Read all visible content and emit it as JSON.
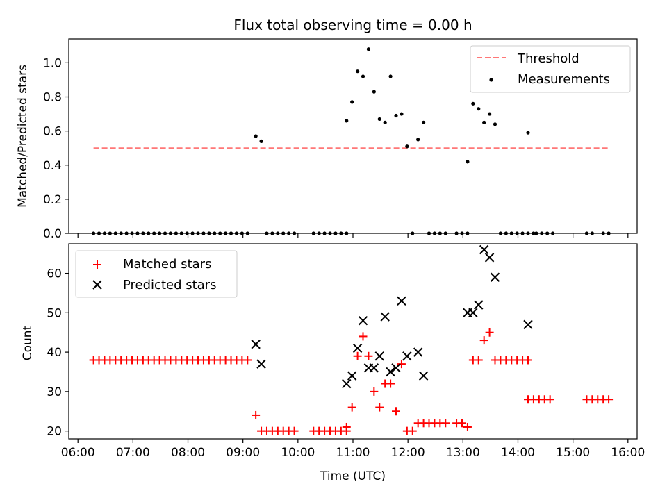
{
  "chart_data": [
    {
      "type": "scatter",
      "title": "Flux total observing time = 0.00 h",
      "xlabel": "",
      "ylabel": "Matched/Predicted stars",
      "xlim": [
        "05:50",
        "16:10"
      ],
      "ylim": [
        0,
        1.14
      ],
      "x_ticks": [
        "06:00",
        "07:00",
        "08:00",
        "09:00",
        "10:00",
        "11:00",
        "12:00",
        "13:00",
        "14:00",
        "15:00",
        "16:00"
      ],
      "y_ticks": [
        "0.0",
        "0.2",
        "0.4",
        "0.6",
        "0.8",
        "1.0"
      ],
      "legend_position": "top-right",
      "threshold": {
        "name": "Threshold",
        "color": "#ff7777",
        "y": 0.5,
        "x_start": "06:17",
        "x_end": "15:40"
      },
      "series": [
        {
          "name": "Measurements",
          "color": "#000000",
          "marker": "dot",
          "points": [
            [
              "06:17",
              0
            ],
            [
              "06:23",
              0
            ],
            [
              "06:29",
              0
            ],
            [
              "06:35",
              0
            ],
            [
              "06:41",
              0
            ],
            [
              "06:47",
              0
            ],
            [
              "06:53",
              0
            ],
            [
              "06:59",
              0
            ],
            [
              "07:05",
              0
            ],
            [
              "07:11",
              0
            ],
            [
              "07:17",
              0
            ],
            [
              "07:23",
              0
            ],
            [
              "07:29",
              0
            ],
            [
              "07:35",
              0
            ],
            [
              "07:41",
              0
            ],
            [
              "07:47",
              0
            ],
            [
              "07:53",
              0
            ],
            [
              "07:59",
              0
            ],
            [
              "08:05",
              0
            ],
            [
              "08:11",
              0
            ],
            [
              "08:17",
              0
            ],
            [
              "08:23",
              0
            ],
            [
              "08:29",
              0
            ],
            [
              "08:35",
              0
            ],
            [
              "08:41",
              0
            ],
            [
              "08:47",
              0
            ],
            [
              "08:53",
              0
            ],
            [
              "08:59",
              0
            ],
            [
              "09:05",
              0
            ],
            [
              "09:14",
              0.57
            ],
            [
              "09:20",
              0.54
            ],
            [
              "09:26",
              0
            ],
            [
              "09:32",
              0
            ],
            [
              "09:38",
              0
            ],
            [
              "09:44",
              0
            ],
            [
              "09:50",
              0
            ],
            [
              "09:56",
              0
            ],
            [
              "10:17",
              0
            ],
            [
              "10:23",
              0
            ],
            [
              "10:29",
              0
            ],
            [
              "10:35",
              0
            ],
            [
              "10:41",
              0
            ],
            [
              "10:47",
              0
            ],
            [
              "10:53",
              0
            ],
            [
              "10:53",
              0.66
            ],
            [
              "10:59",
              0.77
            ],
            [
              "11:05",
              0.95
            ],
            [
              "11:11",
              0.92
            ],
            [
              "11:17",
              1.08
            ],
            [
              "11:23",
              0.83
            ],
            [
              "11:29",
              0.67
            ],
            [
              "11:35",
              0.65
            ],
            [
              "11:41",
              0.92
            ],
            [
              "11:47",
              0.69
            ],
            [
              "11:53",
              0.7
            ],
            [
              "11:59",
              0.51
            ],
            [
              "12:05",
              0
            ],
            [
              "12:11",
              0.55
            ],
            [
              "12:17",
              0.65
            ],
            [
              "12:23",
              0
            ],
            [
              "12:29",
              0
            ],
            [
              "12:35",
              0
            ],
            [
              "12:41",
              0
            ],
            [
              "12:53",
              0
            ],
            [
              "12:59",
              0
            ],
            [
              "13:05",
              0
            ],
            [
              "13:05",
              0.42
            ],
            [
              "13:11",
              0.76
            ],
            [
              "13:17",
              0.73
            ],
            [
              "13:23",
              0.65
            ],
            [
              "13:29",
              0.7
            ],
            [
              "13:35",
              0.64
            ],
            [
              "13:41",
              0
            ],
            [
              "13:47",
              0
            ],
            [
              "13:53",
              0
            ],
            [
              "13:59",
              0
            ],
            [
              "14:05",
              0
            ],
            [
              "14:11",
              0
            ],
            [
              "14:17",
              0
            ],
            [
              "14:11",
              0.59
            ],
            [
              "14:20",
              0
            ],
            [
              "14:26",
              0
            ],
            [
              "14:32",
              0
            ],
            [
              "14:38",
              0
            ],
            [
              "15:15",
              0
            ],
            [
              "15:21",
              0
            ],
            [
              "15:33",
              0
            ],
            [
              "15:39",
              0
            ]
          ]
        }
      ]
    },
    {
      "type": "scatter",
      "title": "",
      "xlabel": "Time (UTC)",
      "ylabel": "Count",
      "xlim": [
        "05:50",
        "16:10"
      ],
      "ylim": [
        18,
        67.5
      ],
      "x_ticks": [
        "06:00",
        "07:00",
        "08:00",
        "09:00",
        "10:00",
        "11:00",
        "12:00",
        "13:00",
        "14:00",
        "15:00",
        "16:00"
      ],
      "y_ticks": [
        "20",
        "30",
        "40",
        "50",
        "60"
      ],
      "legend_position": "top-left",
      "series": [
        {
          "name": "Matched stars",
          "color": "#ff0000",
          "marker": "plus",
          "points": [
            [
              "06:17",
              38
            ],
            [
              "06:23",
              38
            ],
            [
              "06:29",
              38
            ],
            [
              "06:35",
              38
            ],
            [
              "06:41",
              38
            ],
            [
              "06:47",
              38
            ],
            [
              "06:53",
              38
            ],
            [
              "06:59",
              38
            ],
            [
              "07:05",
              38
            ],
            [
              "07:11",
              38
            ],
            [
              "07:17",
              38
            ],
            [
              "07:23",
              38
            ],
            [
              "07:29",
              38
            ],
            [
              "07:35",
              38
            ],
            [
              "07:41",
              38
            ],
            [
              "07:47",
              38
            ],
            [
              "07:53",
              38
            ],
            [
              "07:59",
              38
            ],
            [
              "08:05",
              38
            ],
            [
              "08:11",
              38
            ],
            [
              "08:17",
              38
            ],
            [
              "08:23",
              38
            ],
            [
              "08:29",
              38
            ],
            [
              "08:35",
              38
            ],
            [
              "08:41",
              38
            ],
            [
              "08:47",
              38
            ],
            [
              "08:53",
              38
            ],
            [
              "08:59",
              38
            ],
            [
              "09:05",
              38
            ],
            [
              "09:14",
              24
            ],
            [
              "09:20",
              20
            ],
            [
              "09:26",
              20
            ],
            [
              "09:32",
              20
            ],
            [
              "09:38",
              20
            ],
            [
              "09:44",
              20
            ],
            [
              "09:50",
              20
            ],
            [
              "09:56",
              20
            ],
            [
              "10:17",
              20
            ],
            [
              "10:23",
              20
            ],
            [
              "10:29",
              20
            ],
            [
              "10:35",
              20
            ],
            [
              "10:41",
              20
            ],
            [
              "10:47",
              20
            ],
            [
              "10:53",
              20
            ],
            [
              "10:53",
              21
            ],
            [
              "10:59",
              26
            ],
            [
              "11:05",
              39
            ],
            [
              "11:11",
              44
            ],
            [
              "11:17",
              39
            ],
            [
              "11:23",
              30
            ],
            [
              "11:29",
              26
            ],
            [
              "11:35",
              32
            ],
            [
              "11:41",
              32
            ],
            [
              "11:47",
              25
            ],
            [
              "11:53",
              37
            ],
            [
              "11:59",
              20
            ],
            [
              "12:05",
              20
            ],
            [
              "12:11",
              22
            ],
            [
              "12:17",
              22
            ],
            [
              "12:23",
              22
            ],
            [
              "12:29",
              22
            ],
            [
              "12:35",
              22
            ],
            [
              "12:41",
              22
            ],
            [
              "12:53",
              22
            ],
            [
              "12:59",
              22
            ],
            [
              "13:05",
              21
            ],
            [
              "13:11",
              38
            ],
            [
              "13:17",
              38
            ],
            [
              "13:23",
              43
            ],
            [
              "13:29",
              45
            ],
            [
              "13:35",
              38
            ],
            [
              "13:41",
              38
            ],
            [
              "13:47",
              38
            ],
            [
              "13:53",
              38
            ],
            [
              "13:59",
              38
            ],
            [
              "14:05",
              38
            ],
            [
              "14:11",
              38
            ],
            [
              "14:11",
              28
            ],
            [
              "14:17",
              28
            ],
            [
              "14:23",
              28
            ],
            [
              "14:29",
              28
            ],
            [
              "14:35",
              28
            ],
            [
              "15:15",
              28
            ],
            [
              "15:21",
              28
            ],
            [
              "15:27",
              28
            ],
            [
              "15:33",
              28
            ],
            [
              "15:39",
              28
            ]
          ]
        },
        {
          "name": "Predicted stars",
          "color": "#000000",
          "marker": "x",
          "points": [
            [
              "09:14",
              42
            ],
            [
              "09:20",
              37
            ],
            [
              "10:53",
              32
            ],
            [
              "10:59",
              34
            ],
            [
              "11:05",
              41
            ],
            [
              "11:11",
              48
            ],
            [
              "11:17",
              36
            ],
            [
              "11:23",
              36
            ],
            [
              "11:29",
              39
            ],
            [
              "11:35",
              49
            ],
            [
              "11:41",
              35
            ],
            [
              "11:47",
              36
            ],
            [
              "11:53",
              53
            ],
            [
              "11:59",
              39
            ],
            [
              "12:11",
              40
            ],
            [
              "12:17",
              34
            ],
            [
              "13:05",
              50
            ],
            [
              "13:11",
              50
            ],
            [
              "13:17",
              52
            ],
            [
              "13:23",
              66
            ],
            [
              "13:29",
              64
            ],
            [
              "13:35",
              59
            ],
            [
              "14:11",
              47
            ]
          ]
        }
      ]
    }
  ]
}
